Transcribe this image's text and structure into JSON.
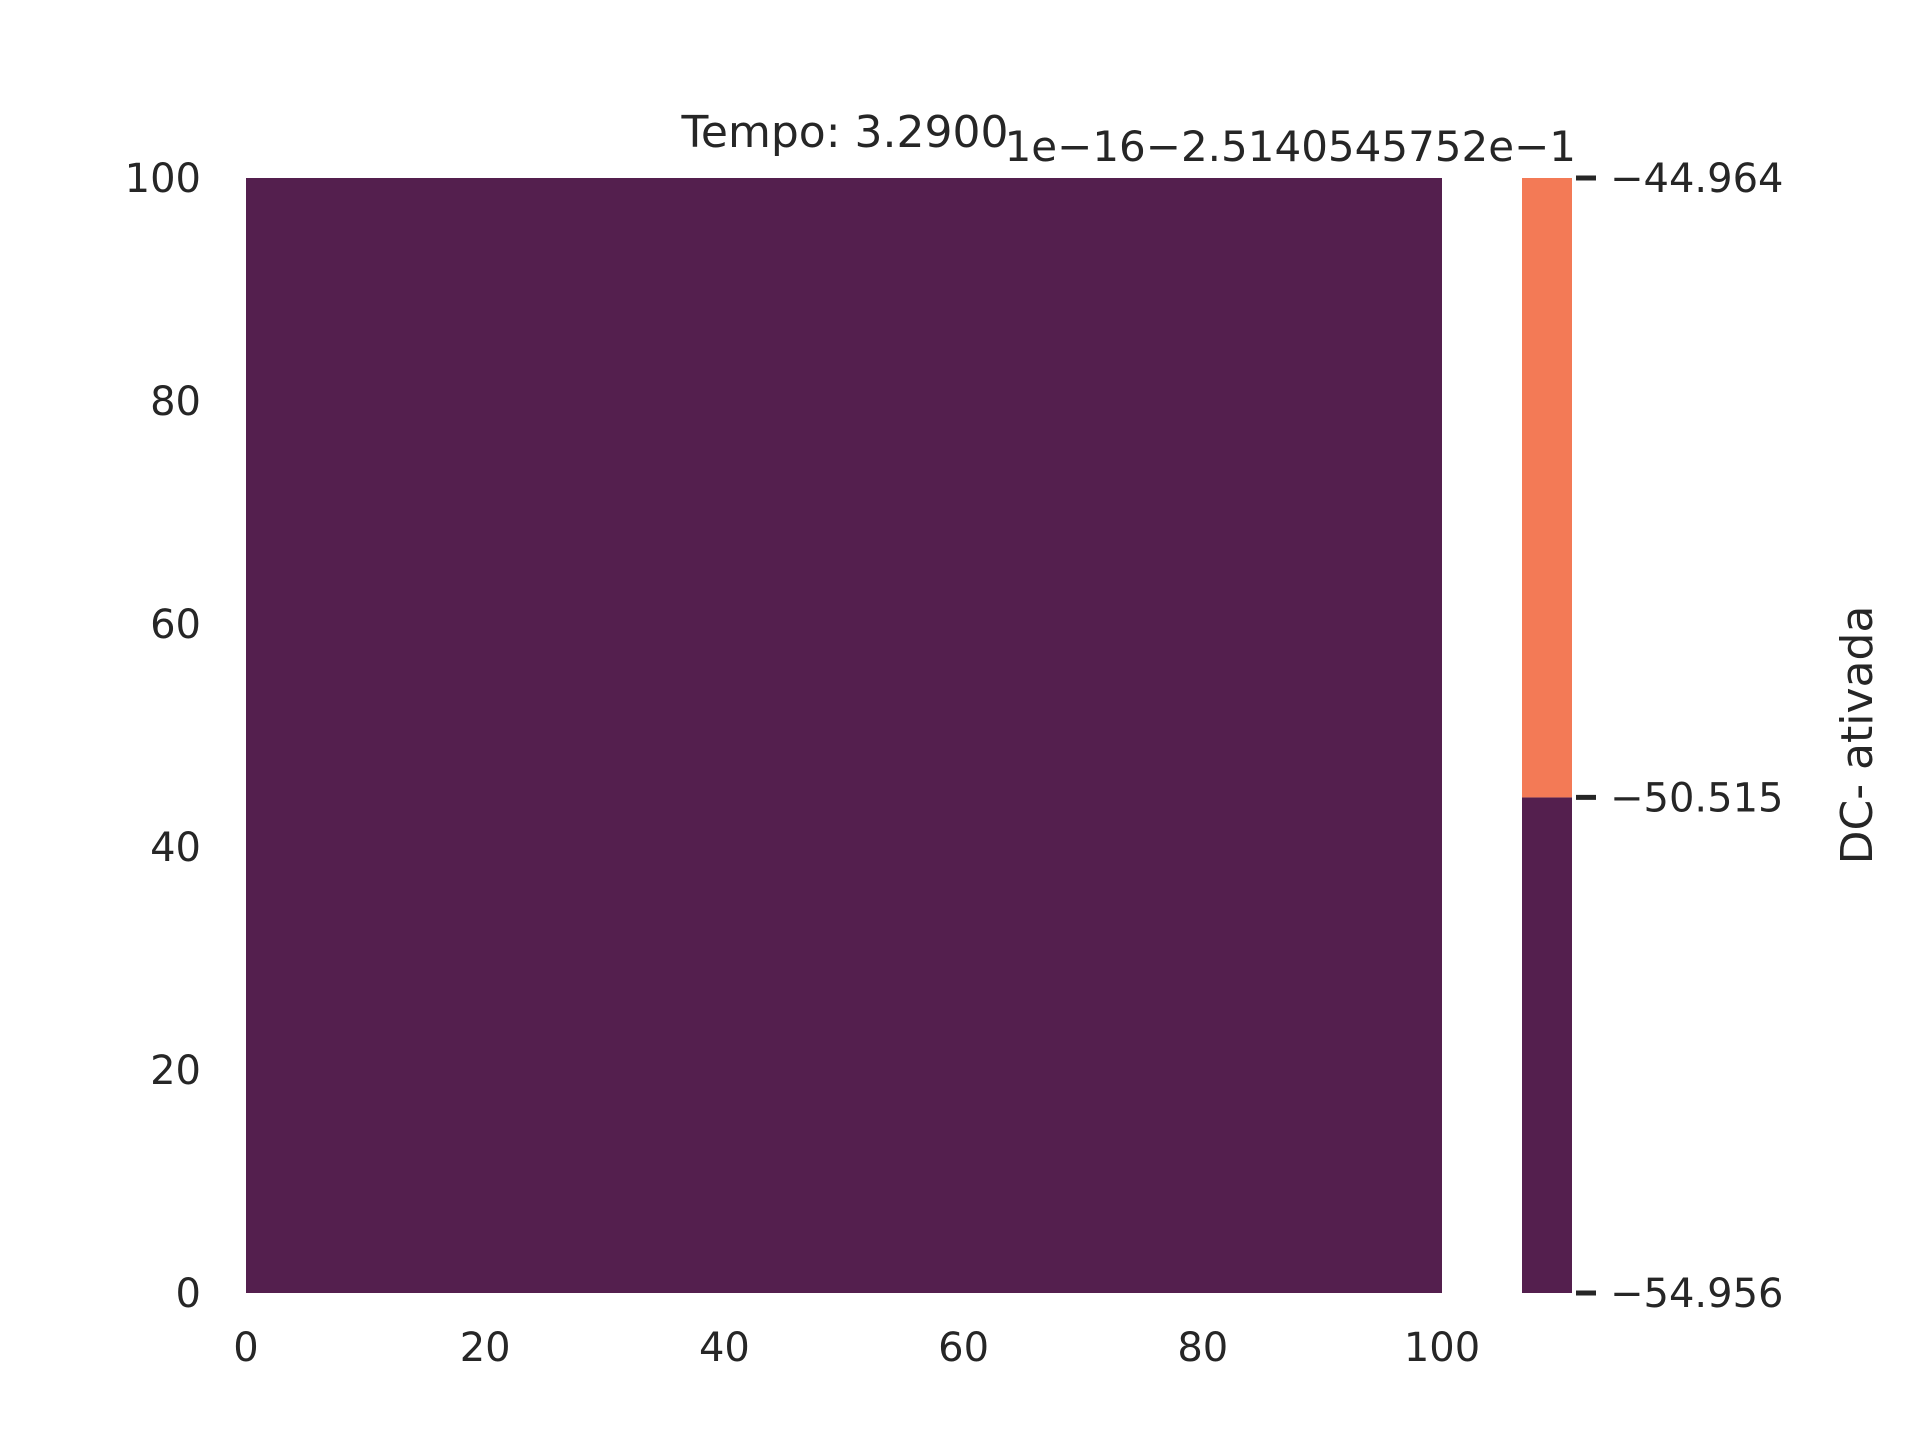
{
  "chart_data": {
    "type": "heatmap",
    "title": "Tempo: 3.2900",
    "x_ticks": [
      "0",
      "20",
      "40",
      "60",
      "80",
      "100"
    ],
    "y_ticks": [
      "0",
      "20",
      "40",
      "60",
      "80",
      "100"
    ],
    "xlim": [
      0,
      100
    ],
    "ylim": [
      0,
      100
    ],
    "grid": false,
    "field": {
      "uniform_value": -54.956,
      "color": "#541f4e"
    },
    "colorbar": {
      "label": "DC- ativada",
      "offset_text": "1e−16−2.5140545752e−1",
      "ticks": [
        "−44.964",
        "−50.515",
        "−54.956"
      ],
      "tick_values": [
        -44.964,
        -50.515,
        -54.956
      ],
      "vmin": -54.956,
      "vmax": -44.964,
      "segments": [
        {
          "from": -54.956,
          "to": -50.515,
          "color": "#541f4e"
        },
        {
          "from": -50.515,
          "to": -44.964,
          "color": "#f37a56"
        }
      ]
    }
  }
}
